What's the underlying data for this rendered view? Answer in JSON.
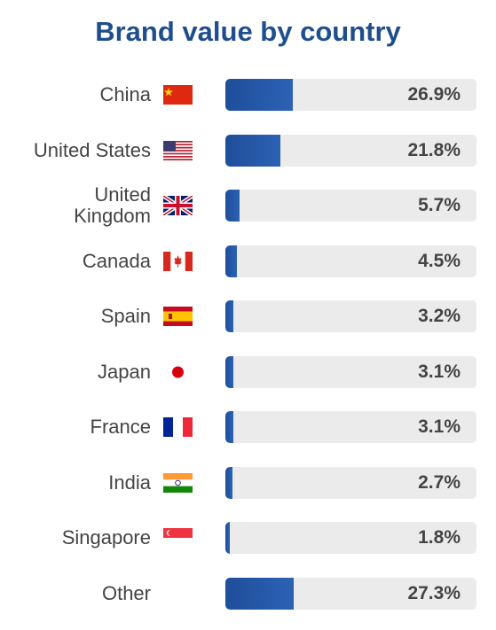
{
  "chart_data": {
    "type": "bar",
    "orientation": "horizontal",
    "title": "Brand value by country",
    "categories": [
      "China",
      "United States",
      "United Kingdom",
      "Canada",
      "Spain",
      "Japan",
      "France",
      "India",
      "Singapore",
      "Other"
    ],
    "values": [
      26.9,
      21.8,
      5.7,
      4.5,
      3.2,
      3.1,
      3.1,
      2.7,
      1.8,
      27.3
    ],
    "value_labels": [
      "26.9%",
      "21.8%",
      "5.7%",
      "4.5%",
      "3.2%",
      "3.1%",
      "3.1%",
      "2.7%",
      "1.8%",
      "27.3%"
    ],
    "xlim": [
      0,
      100
    ],
    "color": "#1f4e9a",
    "track_color": "#ebebeb"
  }
}
